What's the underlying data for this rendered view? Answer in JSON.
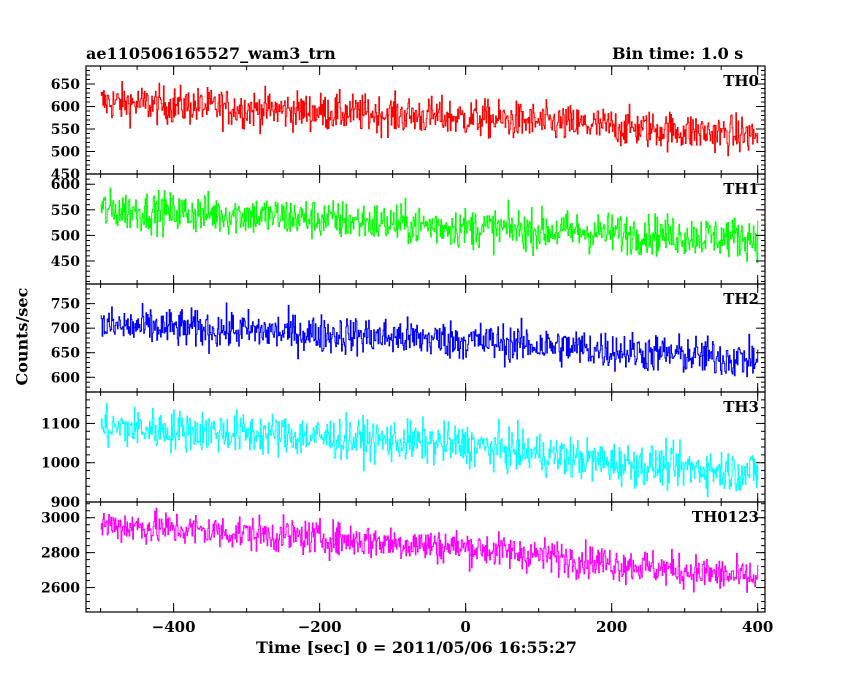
{
  "header": {
    "title": "ae110506165527_wam3_trn",
    "bin_time": "Bin time: 1.0 s"
  },
  "axes": {
    "xlabel": "Time [sec] 0 = 2011/05/06 16:55:27",
    "ylabel": "Counts/sec"
  },
  "chart_data": {
    "type": "line",
    "title": "ae110506165527_wam3_trn",
    "xlabel": "Time [sec] 0 = 2011/05/06 16:55:27",
    "ylabel": "Counts/sec",
    "xlim": [
      -520,
      410
    ],
    "xticks": [
      -400,
      -200,
      0,
      200,
      400
    ],
    "x_start": -500,
    "x_end": 400,
    "bin": 1.0,
    "panels": [
      {
        "name": "TH0",
        "color": "#ff0000",
        "ylim": [
          450,
          690
        ],
        "yticks": [
          450,
          500,
          550,
          600,
          650
        ],
        "trend": [
          [
            -500,
            610
          ],
          [
            -300,
            595
          ],
          [
            0,
            575
          ],
          [
            200,
            555
          ],
          [
            400,
            535
          ]
        ],
        "noise": 30
      },
      {
        "name": "TH1",
        "color": "#00ff00",
        "ylim": [
          405,
          620
        ],
        "yticks": [
          450,
          500,
          550,
          600
        ],
        "trend": [
          [
            -500,
            550
          ],
          [
            -300,
            540
          ],
          [
            0,
            515
          ],
          [
            200,
            505
          ],
          [
            400,
            495
          ]
        ],
        "noise": 28
      },
      {
        "name": "TH2",
        "color": "#0000ff",
        "ylim": [
          570,
          790
        ],
        "yticks": [
          600,
          650,
          700,
          750
        ],
        "trend": [
          [
            -500,
            705
          ],
          [
            -300,
            695
          ],
          [
            0,
            675
          ],
          [
            200,
            655
          ],
          [
            400,
            635
          ]
        ],
        "noise": 28
      },
      {
        "name": "TH3",
        "color": "#00ffff",
        "ylim": [
          900,
          1180
        ],
        "yticks": [
          900,
          1000,
          1100
        ],
        "trend": [
          [
            -500,
            1090
          ],
          [
            -300,
            1075
          ],
          [
            0,
            1045
          ],
          [
            200,
            1000
          ],
          [
            400,
            975
          ]
        ],
        "noise": 38
      },
      {
        "name": "TH0123",
        "color": "#ff00ff",
        "ylim": [
          2460,
          3090
        ],
        "yticks": [
          2600,
          2800,
          3000
        ],
        "trend": [
          [
            -500,
            2960
          ],
          [
            -300,
            2910
          ],
          [
            0,
            2830
          ],
          [
            200,
            2740
          ],
          [
            400,
            2650
          ]
        ],
        "noise": 70
      }
    ]
  }
}
